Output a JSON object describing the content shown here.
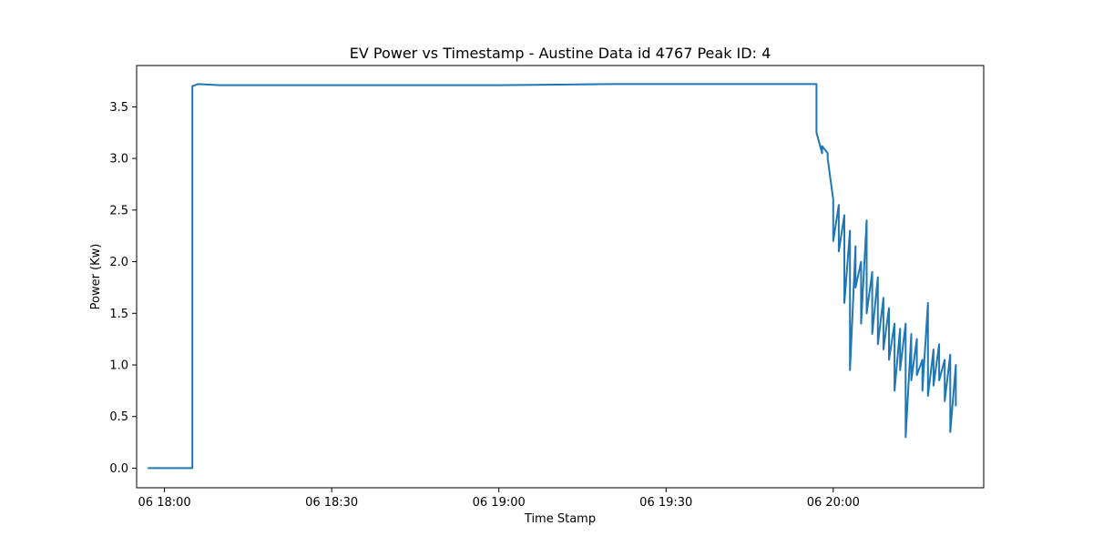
{
  "chart_data": {
    "type": "line",
    "title": "EV Power vs Timestamp - Austine Data id 4767 Peak ID: 4",
    "xlabel": "Time Stamp",
    "ylabel": "Power (Kw)",
    "x_ticks": [
      "06 18:00",
      "06 18:30",
      "06 19:00",
      "06 19:30",
      "06 20:00"
    ],
    "y_ticks": [
      "0.0",
      "0.5",
      "1.0",
      "1.5",
      "2.0",
      "2.5",
      "3.0",
      "3.5"
    ],
    "ylim": [
      -0.19,
      3.9
    ],
    "xlim": [
      "06 17:55",
      "06 20:27"
    ],
    "grid": false,
    "series_color": "#1f77b4",
    "series": [
      {
        "x": [
          "06 17:57",
          "06 18:00",
          "06 18:03",
          "06 18:05",
          "06 18:05",
          "06 18:06",
          "06 18:10",
          "06 18:20",
          "06 18:40",
          "06 19:00",
          "06 19:20",
          "06 19:40",
          "06 19:53",
          "06 19:57",
          "06 19:57",
          "06 19:58",
          "06 19:58",
          "06 19:59",
          "06 19:59",
          "06 20:00",
          "06 20:00",
          "06 20:01",
          "06 20:01",
          "06 20:02",
          "06 20:02",
          "06 20:03",
          "06 20:03",
          "06 20:04",
          "06 20:04",
          "06 20:05",
          "06 20:05",
          "06 20:06",
          "06 20:06",
          "06 20:07",
          "06 20:07",
          "06 20:08",
          "06 20:08",
          "06 20:09",
          "06 20:09",
          "06 20:10",
          "06 20:10",
          "06 20:11",
          "06 20:11",
          "06 20:12",
          "06 20:12",
          "06 20:13",
          "06 20:13",
          "06 20:14",
          "06 20:14",
          "06 20:15",
          "06 20:15",
          "06 20:16",
          "06 20:16",
          "06 20:17",
          "06 20:17",
          "06 20:18",
          "06 20:18",
          "06 20:19",
          "06 20:19",
          "06 20:20",
          "06 20:20",
          "06 20:21",
          "06 20:21",
          "06 20:22",
          "06 20:22"
        ],
        "y": [
          0.0,
          0.0,
          0.0,
          0.0,
          3.7,
          3.72,
          3.71,
          3.71,
          3.71,
          3.71,
          3.72,
          3.72,
          3.72,
          3.72,
          3.25,
          3.05,
          3.12,
          3.05,
          3.0,
          2.6,
          2.2,
          2.55,
          2.1,
          2.45,
          1.6,
          2.3,
          0.95,
          2.15,
          1.75,
          2.0,
          1.4,
          2.4,
          1.5,
          1.9,
          1.3,
          1.85,
          1.2,
          1.65,
          1.15,
          1.55,
          1.05,
          1.4,
          0.75,
          1.35,
          0.95,
          1.4,
          0.3,
          1.3,
          0.85,
          1.25,
          0.9,
          1.05,
          0.75,
          1.6,
          0.7,
          1.15,
          0.8,
          1.2,
          0.85,
          1.05,
          0.65,
          1.1,
          0.35,
          1.0,
          0.6
        ]
      }
    ]
  }
}
